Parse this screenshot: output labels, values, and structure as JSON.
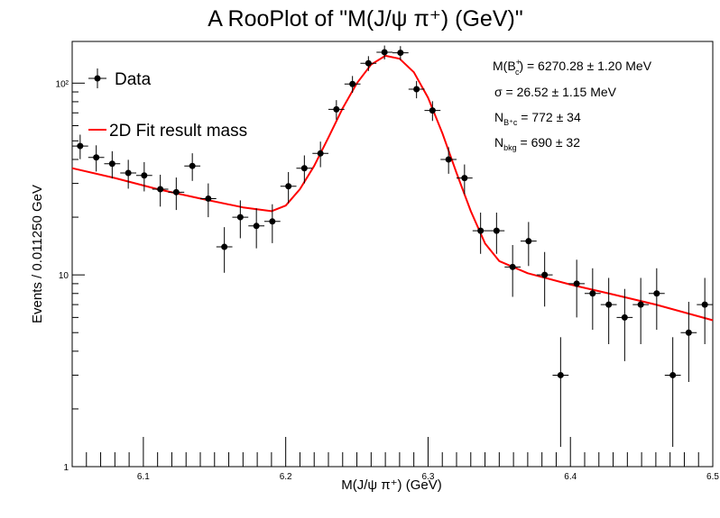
{
  "chart_data": {
    "type": "scatter",
    "title": "A RooPlot of \"M(J/ψ π⁺) (GeV)\"",
    "xlabel": "M(J/ψ π⁺) (GeV)",
    "ylabel": "Events / 0.011250 GeV",
    "xlim": [
      6.05,
      6.5
    ],
    "ylim": [
      1,
      165
    ],
    "yscale": "log",
    "grid": false,
    "legend_position": "top-left",
    "x_ticks": [
      "6.1",
      "6.2",
      "6.3",
      "6.4",
      "6.5"
    ],
    "y_ticks": [
      "1",
      "10",
      "10²"
    ],
    "x_bin_half_width": 0.005625,
    "series": [
      {
        "name": "Data",
        "kind": "points_with_errors",
        "color": "#000000",
        "x": [
          6.0556,
          6.0669,
          6.0781,
          6.0894,
          6.1006,
          6.1119,
          6.1231,
          6.1344,
          6.1456,
          6.1569,
          6.1681,
          6.1794,
          6.1906,
          6.2019,
          6.2131,
          6.2244,
          6.2356,
          6.2469,
          6.2581,
          6.2694,
          6.2806,
          6.2919,
          6.3031,
          6.3144,
          6.3256,
          6.3369,
          6.3481,
          6.3594,
          6.3706,
          6.3819,
          6.3931,
          6.4044,
          6.4156,
          6.4269,
          6.4381,
          6.4494,
          6.4606,
          6.4719,
          6.4831,
          6.4944
        ],
        "y": [
          47,
          41,
          38,
          34,
          33,
          28,
          27,
          37,
          25,
          14,
          20,
          18,
          19,
          29,
          36,
          43,
          73,
          99,
          127,
          145,
          144,
          93,
          72,
          40,
          32,
          17,
          17,
          11,
          15,
          10,
          3,
          9,
          8,
          7,
          6,
          7,
          8,
          3,
          5,
          7
        ]
      },
      {
        "name": "2D Fit result mass",
        "kind": "line",
        "color": "#ff0000",
        "x": [
          6.05,
          6.08,
          6.11,
          6.14,
          6.17,
          6.19,
          6.2,
          6.21,
          6.22,
          6.23,
          6.24,
          6.25,
          6.26,
          6.27,
          6.28,
          6.29,
          6.3,
          6.31,
          6.32,
          6.33,
          6.34,
          6.35,
          6.37,
          6.4,
          6.43,
          6.46,
          6.5
        ],
        "y": [
          36,
          32,
          28,
          25,
          22.5,
          21.5,
          23,
          28,
          37,
          52,
          74,
          100,
          125,
          139,
          134,
          114,
          84,
          55,
          34,
          21.5,
          14.6,
          11.8,
          10.2,
          8.9,
          7.9,
          7.0,
          5.8
        ]
      }
    ],
    "legend": [
      {
        "label": "Data",
        "marker": "point"
      },
      {
        "label": "2D Fit result mass",
        "marker": "line"
      }
    ],
    "fit_results": [
      {
        "main": "M(B",
        "sup": "+",
        "sub": "c",
        "rest": ") = 6270.28 ± 1.20 MeV"
      },
      {
        "main": "σ = 26.52 ± 1.15 MeV",
        "sup": "",
        "sub": "",
        "rest": ""
      },
      {
        "main": "N",
        "sup": "",
        "sub": "B⁺c",
        "rest": " = 772 ± 34"
      },
      {
        "main": "N",
        "sup": "",
        "sub": "bkg",
        "rest": " = 690 ± 32"
      }
    ]
  }
}
